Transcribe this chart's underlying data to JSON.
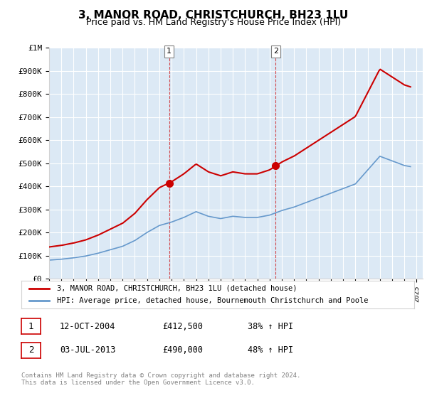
{
  "title": "3, MANOR ROAD, CHRISTCHURCH, BH23 1LU",
  "subtitle": "Price paid vs. HM Land Registry's House Price Index (HPI)",
  "legend_line1": "3, MANOR ROAD, CHRISTCHURCH, BH23 1LU (detached house)",
  "legend_line2": "HPI: Average price, detached house, Bournemouth Christchurch and Poole",
  "footnote": "Contains HM Land Registry data © Crown copyright and database right 2024.\nThis data is licensed under the Open Government Licence v3.0.",
  "sale1_label": "1",
  "sale1_date": "12-OCT-2004",
  "sale1_price": "£412,500",
  "sale1_hpi": "38% ↑ HPI",
  "sale2_label": "2",
  "sale2_date": "03-JUL-2013",
  "sale2_price": "£490,000",
  "sale2_hpi": "48% ↑ HPI",
  "red_color": "#cc0000",
  "blue_color": "#6699cc",
  "background_color": "#dce9f5",
  "plot_bg": "#dce9f5",
  "ylim": [
    0,
    1000000
  ],
  "yticks": [
    0,
    100000,
    200000,
    300000,
    400000,
    500000,
    600000,
    700000,
    800000,
    900000,
    1000000
  ],
  "ytick_labels": [
    "£0",
    "£100K",
    "£200K",
    "£300K",
    "£400K",
    "£500K",
    "£600K",
    "£700K",
    "£800K",
    "£900K",
    "£1M"
  ],
  "xmin": 1995,
  "xmax": 2025.5,
  "sale1_x": 2004.79,
  "sale1_y": 412500,
  "sale2_x": 2013.5,
  "sale2_y": 490000,
  "vline1_x": 2004.79,
  "vline2_x": 2013.5
}
